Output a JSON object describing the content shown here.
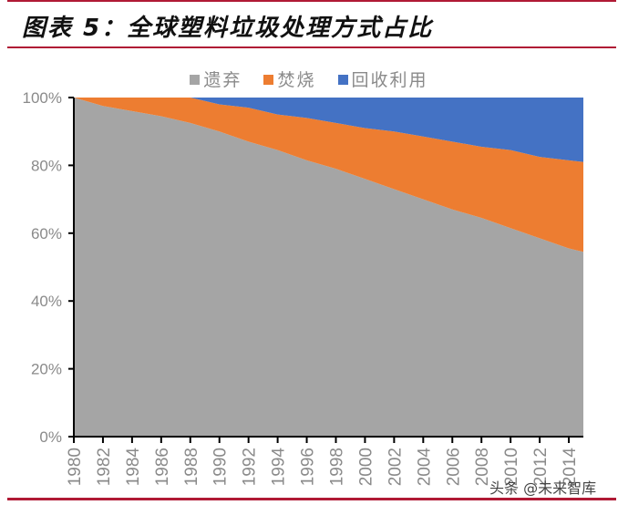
{
  "title": "图表 5：全球塑料垃圾处理方式占比",
  "watermark": "头条 @未来智库",
  "chart_data": {
    "type": "area",
    "stacked": true,
    "title": "图表 5：全球塑料垃圾处理方式占比",
    "xlabel": "",
    "ylabel": "",
    "x": [
      1980,
      1982,
      1984,
      1986,
      1988,
      1990,
      1992,
      1994,
      1996,
      1998,
      2000,
      2002,
      2004,
      2006,
      2008,
      2010,
      2012,
      2014,
      2015
    ],
    "x_ticks": [
      "1980",
      "1982",
      "1984",
      "1986",
      "1988",
      "1990",
      "1992",
      "1994",
      "1996",
      "1998",
      "2000",
      "2002",
      "2004",
      "2006",
      "2008",
      "2010",
      "2012",
      "2014"
    ],
    "y_ticks": [
      "0%",
      "20%",
      "40%",
      "60%",
      "80%",
      "100%"
    ],
    "ylim": [
      0,
      100
    ],
    "legend_position": "top",
    "grid": false,
    "series": [
      {
        "name": "遗弃",
        "color": "#a5a5a5",
        "values": [
          100,
          97.5,
          96,
          94.5,
          92.5,
          90,
          87,
          84.5,
          81.5,
          79,
          76,
          73,
          70,
          67,
          64.5,
          61.5,
          58.5,
          55.5,
          54.5
        ]
      },
      {
        "name": "焚烧",
        "color": "#ed7d31",
        "values": [
          0,
          2.5,
          4,
          5.5,
          7.5,
          8,
          10,
          10.5,
          12.5,
          13.5,
          15,
          17,
          18.5,
          20,
          21,
          23,
          24,
          26,
          26.5
        ]
      },
      {
        "name": "回收利用",
        "color": "#4472c4",
        "values": [
          0,
          0,
          0,
          0,
          0,
          2,
          3,
          5,
          6,
          7.5,
          9,
          10,
          11.5,
          13,
          14.5,
          15.5,
          17.5,
          18.5,
          19
        ]
      }
    ]
  }
}
